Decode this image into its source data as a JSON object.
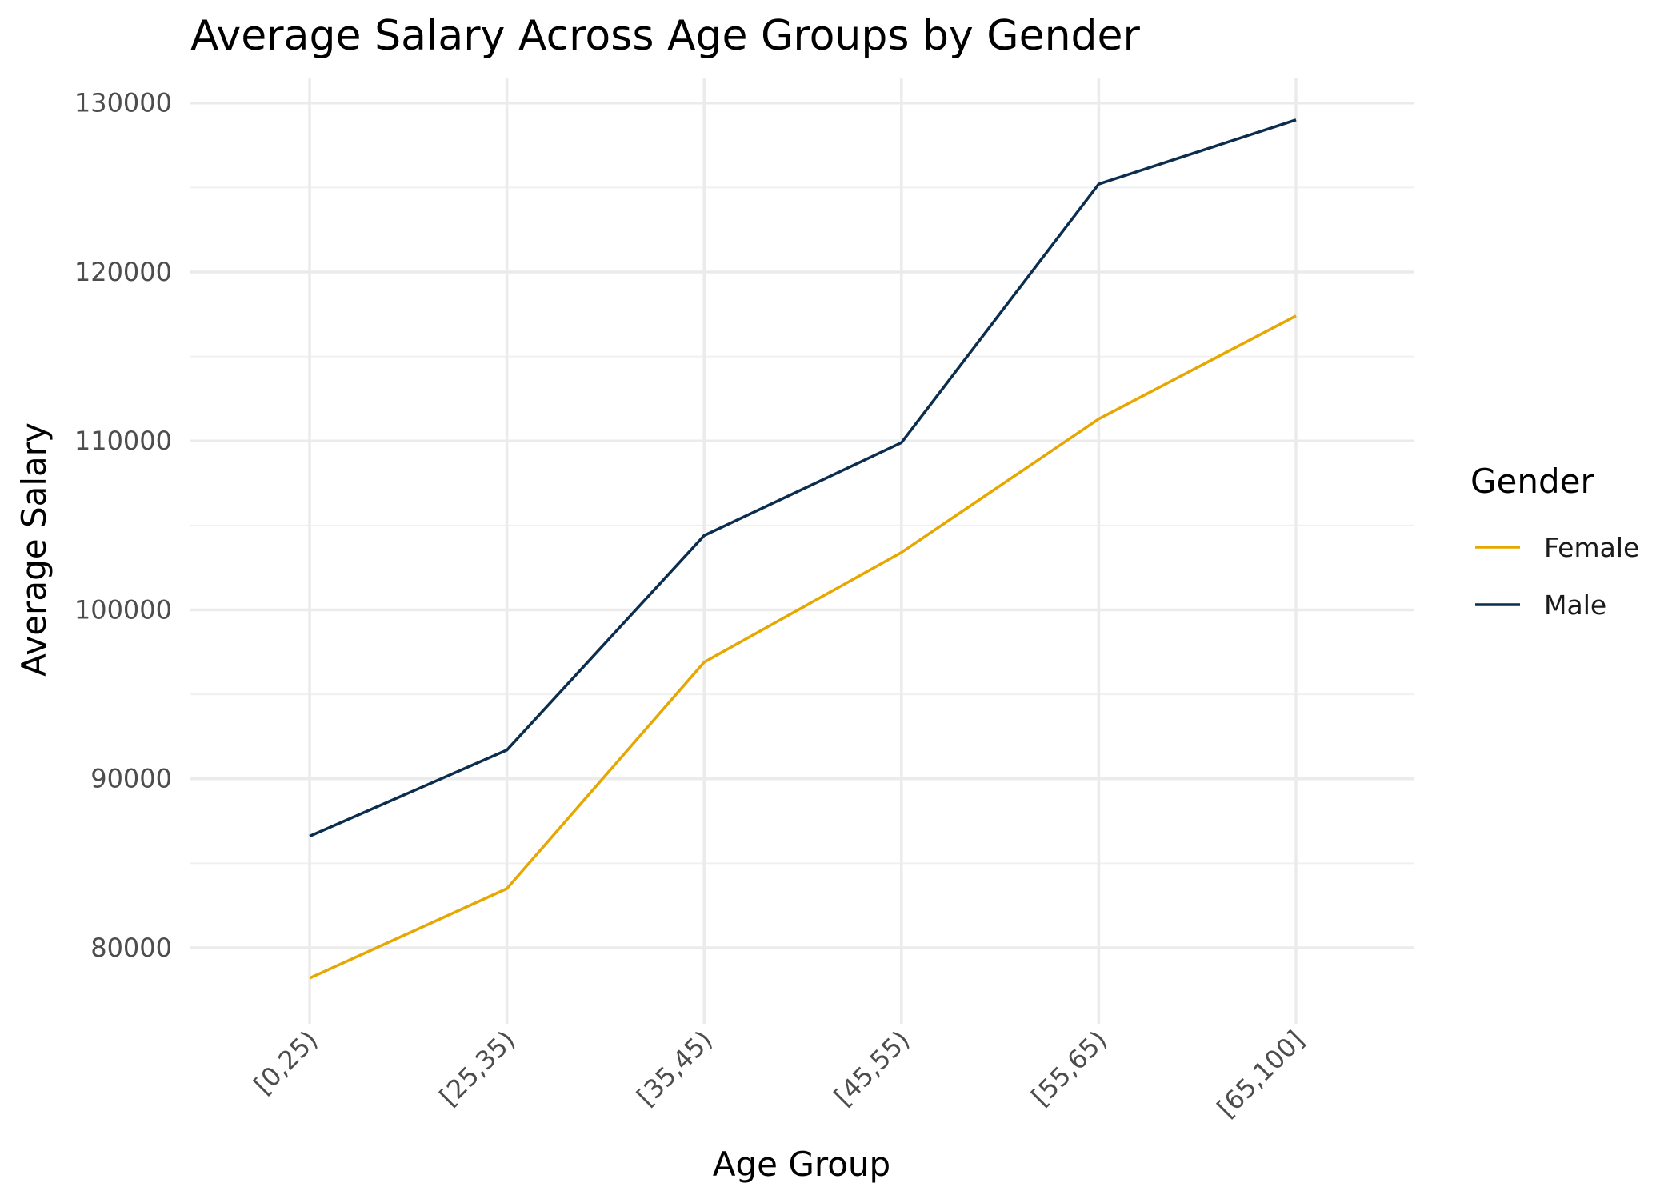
{
  "chart_data": {
    "type": "line",
    "title": "Average Salary Across Age Groups by Gender",
    "xlabel": "Age Group",
    "ylabel": "Average Salary",
    "categories": [
      "[0,25)",
      "[25,35)",
      "[35,45)",
      "[45,55)",
      "[55,65)",
      "[65,100]"
    ],
    "ylim": [
      75500,
      131500
    ],
    "yticks": [
      80000,
      90000,
      100000,
      110000,
      120000,
      130000
    ],
    "yticks_labels": [
      "80000",
      "90000",
      "100000",
      "110000",
      "120000",
      "130000"
    ],
    "grid": true,
    "legend": {
      "title": "Gender",
      "position": "right"
    },
    "series": [
      {
        "name": "Female",
        "color": "#E6A800",
        "values": [
          78200,
          83500,
          96900,
          103400,
          111300,
          117400
        ]
      },
      {
        "name": "Male",
        "color": "#0B2D4E",
        "values": [
          86600,
          91700,
          104400,
          109900,
          125200,
          129000
        ]
      }
    ]
  }
}
